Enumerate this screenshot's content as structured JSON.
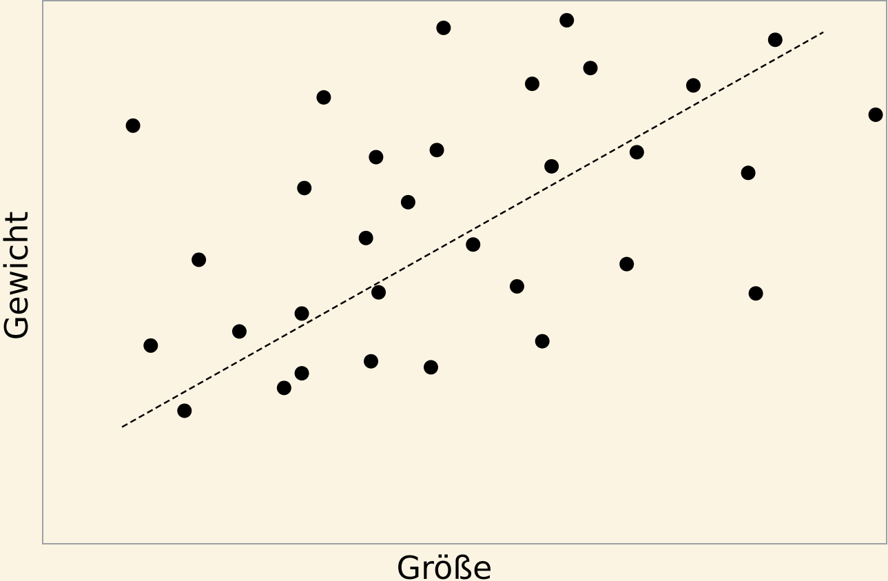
{
  "colors": {
    "background": "#fcf4e3",
    "frame": "#9aa0a3",
    "points": "#000000",
    "trendline": "#000000"
  },
  "chart_data": {
    "type": "scatter",
    "xlabel": "Größe",
    "ylabel": "Gewicht",
    "xlim": [
      0,
      100
    ],
    "ylim": [
      0,
      100
    ],
    "grid": false,
    "ticks": false,
    "points": [
      {
        "x": 10.7,
        "y": 77.0
      },
      {
        "x": 12.8,
        "y": 36.5
      },
      {
        "x": 16.8,
        "y": 24.5
      },
      {
        "x": 18.5,
        "y": 52.3
      },
      {
        "x": 23.3,
        "y": 39.1
      },
      {
        "x": 28.6,
        "y": 28.7
      },
      {
        "x": 30.7,
        "y": 31.4
      },
      {
        "x": 30.7,
        "y": 42.4
      },
      {
        "x": 31.0,
        "y": 65.5
      },
      {
        "x": 33.3,
        "y": 82.2
      },
      {
        "x": 38.3,
        "y": 56.3
      },
      {
        "x": 38.9,
        "y": 33.6
      },
      {
        "x": 39.5,
        "y": 71.2
      },
      {
        "x": 39.8,
        "y": 46.3
      },
      {
        "x": 43.3,
        "y": 62.9
      },
      {
        "x": 46.0,
        "y": 32.5
      },
      {
        "x": 46.7,
        "y": 72.5
      },
      {
        "x": 47.5,
        "y": 95.0
      },
      {
        "x": 51.0,
        "y": 55.1
      },
      {
        "x": 56.2,
        "y": 47.4
      },
      {
        "x": 58.0,
        "y": 84.7
      },
      {
        "x": 59.2,
        "y": 37.3
      },
      {
        "x": 60.3,
        "y": 69.5
      },
      {
        "x": 62.1,
        "y": 96.4
      },
      {
        "x": 64.9,
        "y": 87.6
      },
      {
        "x": 69.2,
        "y": 51.5
      },
      {
        "x": 70.4,
        "y": 72.1
      },
      {
        "x": 77.1,
        "y": 84.4
      },
      {
        "x": 83.6,
        "y": 68.3
      },
      {
        "x": 84.5,
        "y": 46.1
      },
      {
        "x": 86.8,
        "y": 92.8
      },
      {
        "x": 98.7,
        "y": 79.0
      }
    ],
    "trendline": {
      "style": "dashed",
      "x": [
        9.4,
        92.5
      ],
      "y": [
        21.5,
        94.2
      ]
    }
  }
}
